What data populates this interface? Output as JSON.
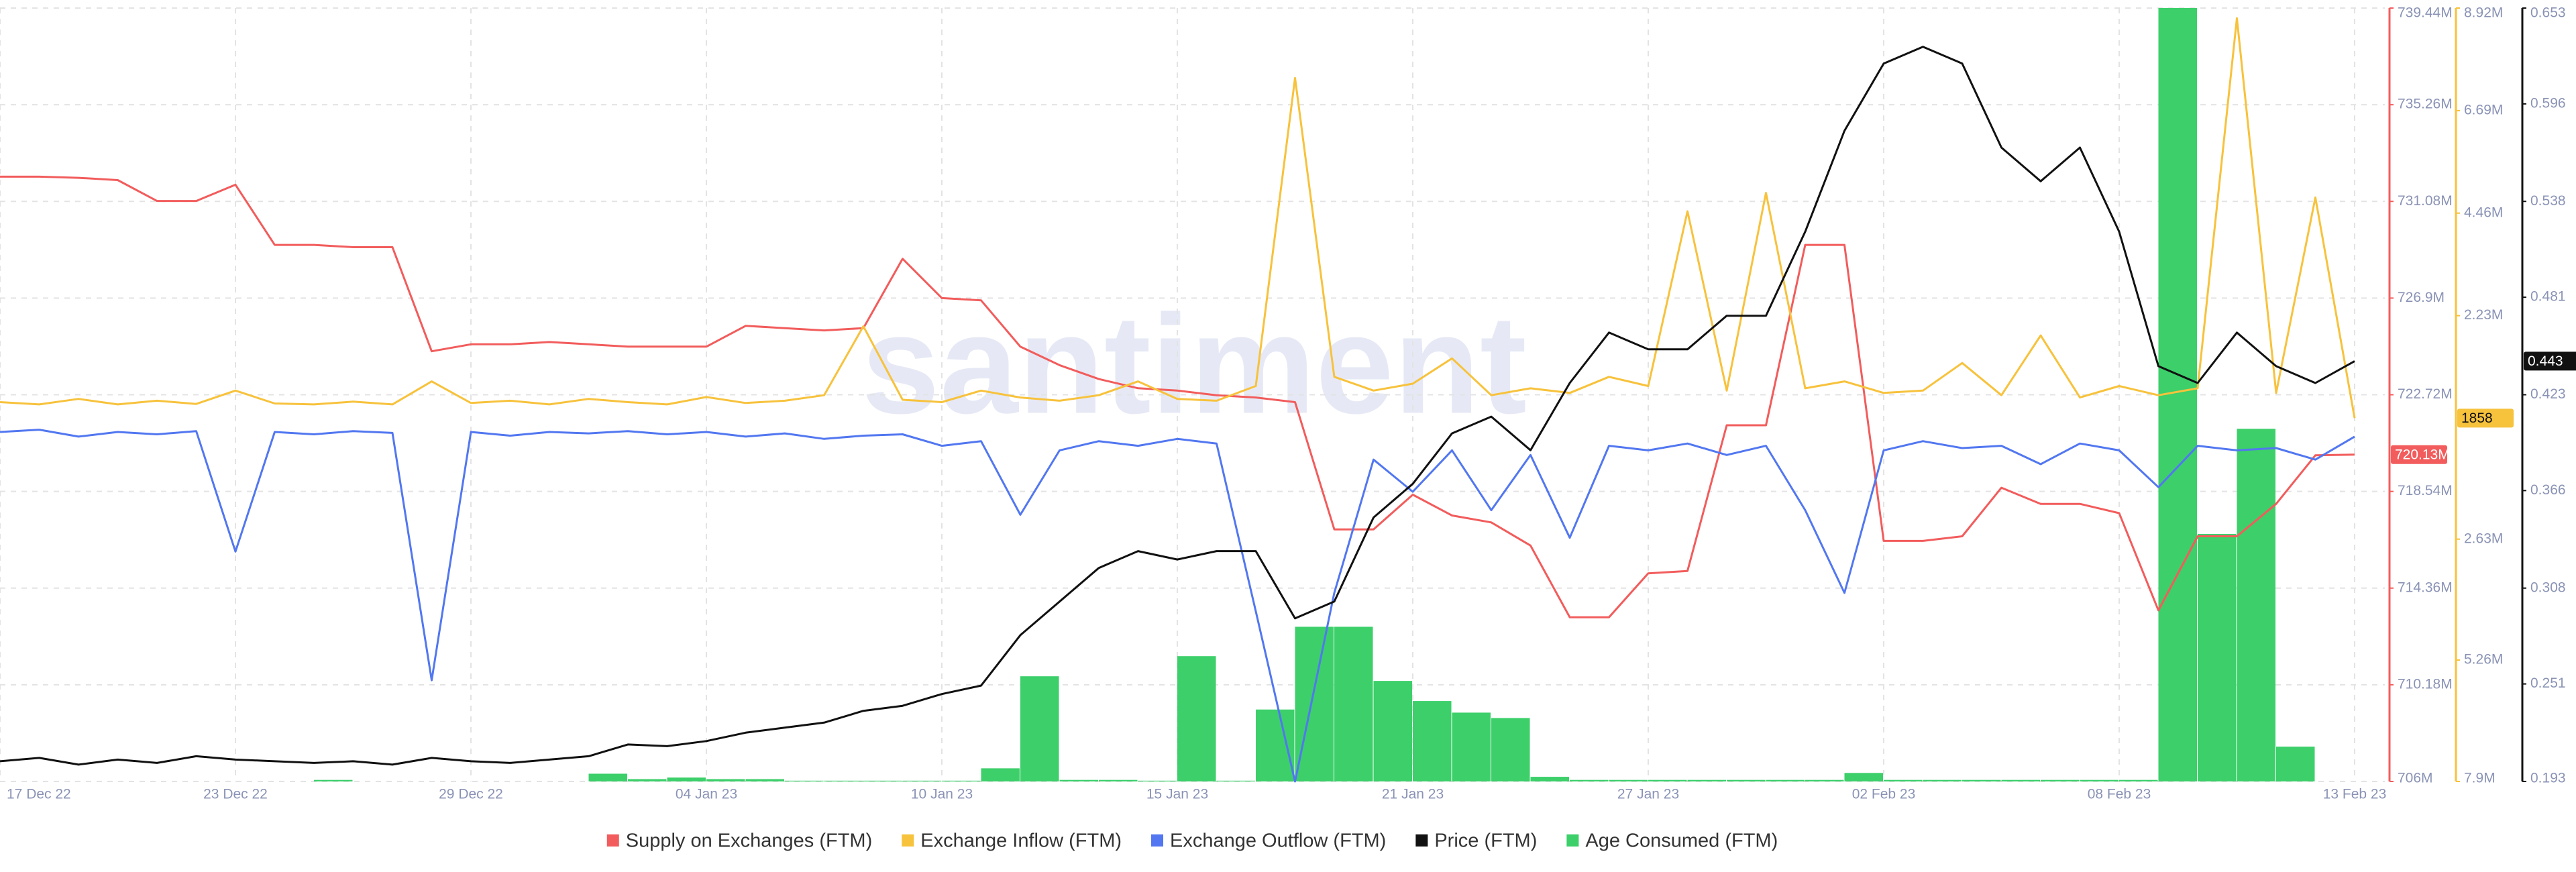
{
  "chart_data": {
    "type": "line",
    "watermark": "santiment",
    "categories": [
      "17 Dec 22",
      null,
      null,
      null,
      null,
      null,
      "23 Dec 22",
      null,
      null,
      null,
      null,
      null,
      "29 Dec 22",
      null,
      null,
      null,
      null,
      null,
      "04 Jan 23",
      null,
      null,
      null,
      null,
      null,
      "10 Jan 23",
      null,
      null,
      null,
      null,
      null,
      "15 Jan 23",
      null,
      null,
      null,
      null,
      null,
      "21 Jan 23",
      null,
      null,
      null,
      null,
      null,
      "27 Jan 23",
      null,
      null,
      null,
      null,
      null,
      "02 Feb 23",
      null,
      null,
      null,
      null,
      null,
      "08 Feb 23",
      null,
      null,
      null,
      null,
      null,
      "13 Feb 23"
    ],
    "ylim": [
      706000000,
      739440000
    ],
    "yticks": [
      {
        "value": 706000000,
        "label": "706M"
      },
      {
        "value": 710180000,
        "label": "710.18M"
      },
      {
        "value": 714360000,
        "label": "714.36M"
      },
      {
        "value": 718540000,
        "label": "718.54M"
      },
      {
        "value": 722720000,
        "label": "722.72M"
      },
      {
        "value": 726900000,
        "label": "726.9M"
      },
      {
        "value": 731080000,
        "label": "731.08M"
      },
      {
        "value": 735260000,
        "label": "735.26M"
      },
      {
        "value": 739440000,
        "label": "739.44M"
      }
    ],
    "y2lim": [
      -7900000,
      8920000
    ],
    "y2ticks": [
      {
        "value": -7900000,
        "label": "7.9M"
      },
      {
        "value": -5260000,
        "label": "5.26M"
      },
      {
        "value": -2630000,
        "label": "2.63M"
      },
      {
        "value": 2230000,
        "label": "2.23M"
      },
      {
        "value": 4460000,
        "label": "4.46M"
      },
      {
        "value": 6690000,
        "label": "6.69M"
      },
      {
        "value": 8920000,
        "label": "8.92M"
      }
    ],
    "y3lim": [
      0.193,
      0.653
    ],
    "y3ticks": [
      0.193,
      0.251,
      0.308,
      0.366,
      0.423,
      0.481,
      0.538,
      0.596,
      0.653
    ],
    "y4lim": [
      0,
      100
    ],
    "grid": true,
    "legend": "bottom",
    "series": [
      {
        "name": "Supply on Exchanges (FTM)",
        "color": "#f25c5c",
        "type": "line",
        "axis": "y",
        "last_value_label": "720.13M",
        "values": [
          732150000,
          732150000,
          732100000,
          732000000,
          731100000,
          731100000,
          731800000,
          729200000,
          729200000,
          729100000,
          729100000,
          724600000,
          724900000,
          724900000,
          725000000,
          724900000,
          724800000,
          724800000,
          724800000,
          725700000,
          725600000,
          725500000,
          725600000,
          728600000,
          726900000,
          726800000,
          724800000,
          724000000,
          723400000,
          723000000,
          722900000,
          722700000,
          722600000,
          722400000,
          716900000,
          716900000,
          718400000,
          717500000,
          717200000,
          716200000,
          713100000,
          713100000,
          715000000,
          715100000,
          721400000,
          721400000,
          729200000,
          729200000,
          716400000,
          716400000,
          716600000,
          718700000,
          718000000,
          718000000,
          717600000,
          713400000,
          716600000,
          716600000,
          718000000,
          720100000,
          720130000
        ]
      },
      {
        "name": "Exchange Inflow (FTM)",
        "color": "#f7c23c",
        "type": "line",
        "axis": "y2",
        "values": [
          350000,
          300000,
          420000,
          300000,
          380000,
          310000,
          600000,
          320000,
          300000,
          360000,
          300000,
          800000,
          330000,
          380000,
          300000,
          420000,
          350000,
          300000,
          460000,
          330000,
          380000,
          500000,
          2000000,
          400000,
          350000,
          600000,
          450000,
          380000,
          500000,
          800000,
          420000,
          380000,
          700000,
          7400000,
          900000,
          600000,
          750000,
          1300000,
          500000,
          650000,
          550000,
          900000,
          700000,
          4500000,
          600000,
          4900000,
          650000,
          800000,
          550000,
          600000,
          1200000,
          500000,
          1800000,
          450000,
          700000,
          500000,
          650000,
          8700000,
          550000,
          4800000,
          1858
        ]
      },
      {
        "name": "Exchange Outflow (FTM)",
        "color": "#5277f0",
        "type": "line",
        "axis": "y2",
        "values": [
          -300000,
          -250000,
          -400000,
          -300000,
          -350000,
          -280000,
          -2900000,
          -300000,
          -350000,
          -280000,
          -320000,
          -5700000,
          -300000,
          -380000,
          -300000,
          -330000,
          -280000,
          -350000,
          -300000,
          -400000,
          -330000,
          -450000,
          -380000,
          -350000,
          -600000,
          -500000,
          -2100000,
          -700000,
          -500000,
          -600000,
          -450000,
          -550000,
          -4200000,
          -7900000,
          -3800000,
          -900000,
          -1600000,
          -700000,
          -2000000,
          -800000,
          -2600000,
          -600000,
          -700000,
          -550000,
          -800000,
          -600000,
          -2000000,
          -3800000,
          -700000,
          -500000,
          -650000,
          -600000,
          -1000000,
          -550000,
          -700000,
          -1500000,
          -600000,
          -700000,
          -650000,
          -900000,
          -400000
        ]
      },
      {
        "name": "Price (FTM)",
        "color": "#111111",
        "type": "line",
        "axis": "y3",
        "values": [
          0.205,
          0.207,
          0.203,
          0.206,
          0.204,
          0.208,
          0.206,
          0.205,
          0.204,
          0.205,
          0.203,
          0.207,
          0.205,
          0.204,
          0.206,
          0.208,
          0.215,
          0.214,
          0.217,
          0.222,
          0.225,
          0.228,
          0.235,
          0.238,
          0.245,
          0.25,
          0.28,
          0.3,
          0.32,
          0.33,
          0.325,
          0.33,
          0.33,
          0.29,
          0.3,
          0.35,
          0.37,
          0.4,
          0.41,
          0.39,
          0.43,
          0.46,
          0.45,
          0.45,
          0.47,
          0.47,
          0.52,
          0.58,
          0.62,
          0.63,
          0.62,
          0.57,
          0.55,
          0.57,
          0.52,
          0.44,
          0.43,
          0.46,
          0.44,
          0.43,
          0.443
        ]
      },
      {
        "name": "Age Consumed (FTM)",
        "color": "#3ccf6a",
        "type": "bar",
        "axis": "y4",
        "values": [
          0,
          0,
          0,
          0,
          0,
          0,
          0,
          0,
          0.2,
          0,
          0,
          0,
          0,
          0,
          0,
          1,
          0.3,
          0.5,
          0.3,
          0.3,
          0.1,
          0.1,
          0.1,
          0.1,
          0.1,
          1.7,
          13.6,
          0.2,
          0.2,
          0.1,
          16.2,
          0.1,
          9.3,
          20,
          20,
          13,
          10.4,
          8.9,
          8.2,
          0.6,
          0.2,
          0.2,
          0.2,
          0.2,
          0.2,
          0.2,
          0.2,
          1.1,
          0.2,
          0.2,
          0.2,
          0.2,
          0.2,
          0.2,
          0.2,
          100,
          32,
          45.6,
          4.5,
          0,
          0
        ]
      }
    ]
  }
}
